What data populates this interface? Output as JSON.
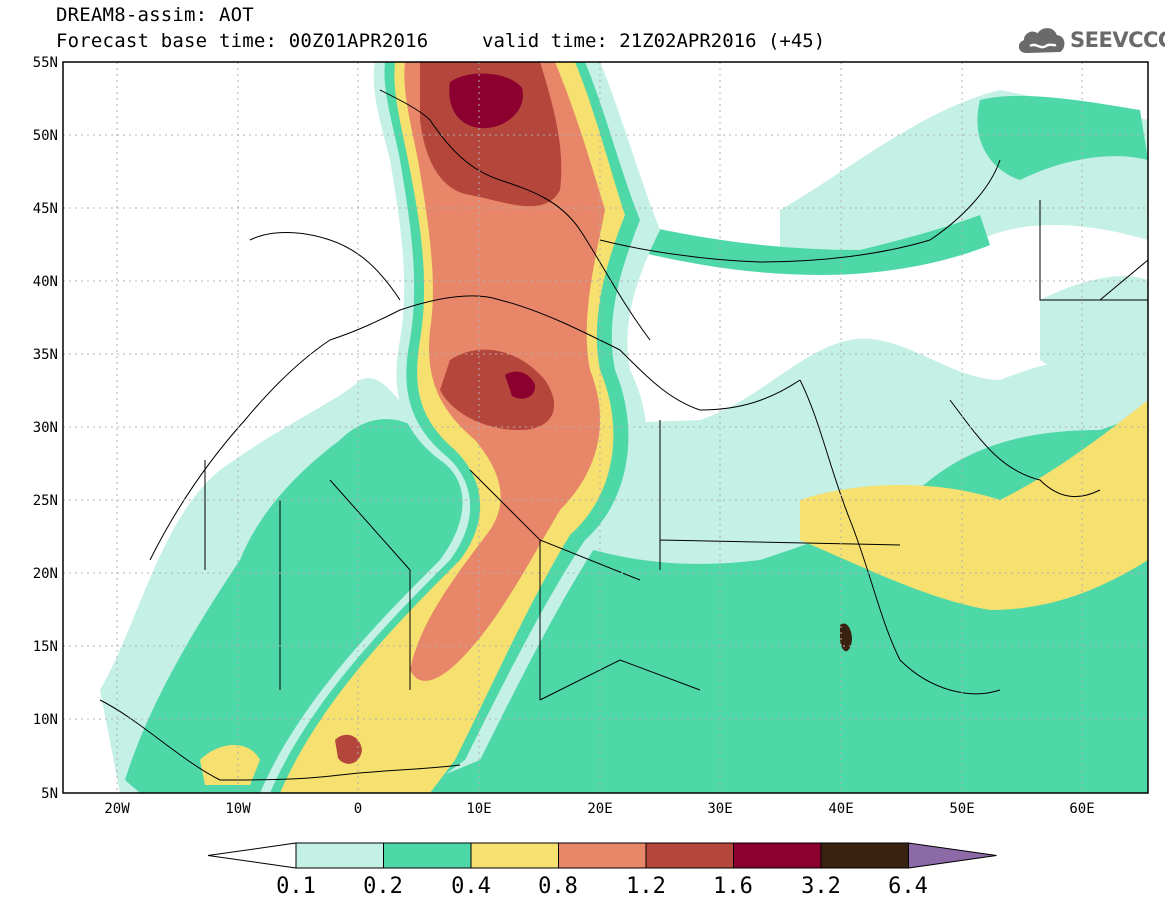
{
  "header": {
    "line1": "DREAM8-assim: AOT",
    "line2": "Forecast base time: 00Z01APR2016",
    "valid": "valid time: 21Z02APR2016 (+45)"
  },
  "logo": {
    "text": "SEEVCCC",
    "icon": "cloud-icon"
  },
  "map": {
    "lat_labels": [
      "55N",
      "50N",
      "45N",
      "40N",
      "35N",
      "30N",
      "25N",
      "20N",
      "15N",
      "10N",
      "5N"
    ],
    "lon_labels": [
      "20W",
      "10W",
      "0",
      "10E",
      "20E",
      "30E",
      "40E",
      "50E",
      "60E"
    ],
    "lat_range": [
      5,
      55
    ],
    "lon_range": [
      -25,
      65
    ],
    "grid": true
  },
  "colorbar": {
    "labels": [
      "0.1",
      "0.2",
      "0.4",
      "0.8",
      "1.2",
      "1.6",
      "3.2",
      "6.4"
    ],
    "colors": [
      "#ffffff",
      "#c4f0e6",
      "#4ed8a8",
      "#f5e070",
      "#e8866a",
      "#b5463c",
      "#8c0030",
      "#3a2210",
      "#8c6aa8"
    ]
  }
}
